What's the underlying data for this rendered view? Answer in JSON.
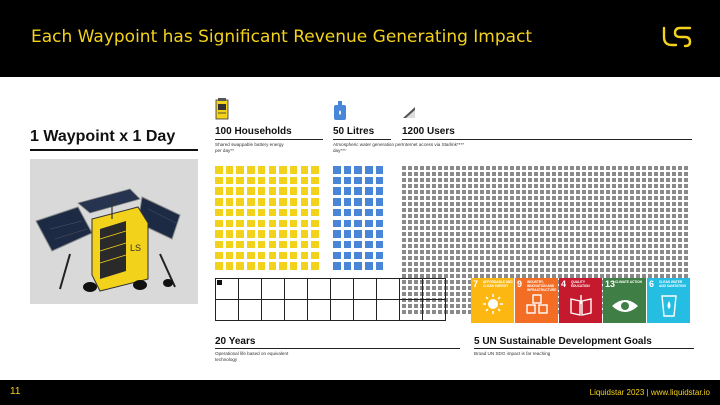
{
  "header": {
    "title": "Each Waypoint has Significant Revenue Generating Impact"
  },
  "slide": {
    "main_heading": "1 Waypoint x 1 Day",
    "columns": [
      {
        "icon": "battery-icon",
        "title": "100 Households",
        "subtitle": "Shared swappable battery energy per day**",
        "count": 100,
        "color": "#f2d21a"
      },
      {
        "icon": "water-bottle-icon",
        "title": "50 Litres",
        "subtitle": "Atmospheric water generation per day***",
        "count": 50,
        "color": "#4a86d8"
      },
      {
        "icon": "signal-icon",
        "title": "1200 Users",
        "subtitle": "Internet access via Starlink****",
        "count": 1200,
        "color": "#8a8a8a"
      }
    ],
    "lifetime": {
      "title": "20 Years",
      "subtitle": "Operational life based on equivalent technology",
      "years": 20,
      "filled": 1
    },
    "sdg": {
      "title": "5 UN Sustainable Development Goals",
      "subtitle": "Broad UN SDG impact is far reaching",
      "goals": [
        {
          "number": "7",
          "label": "AFFORDABLE AND CLEAN ENERGY",
          "color": "#fcb713",
          "icon": "sun-icon"
        },
        {
          "number": "9",
          "label": "INDUSTRY, INNOVATION AND INFRASTRUCTURE",
          "color": "#f36d25",
          "icon": "cubes-icon"
        },
        {
          "number": "4",
          "label": "QUALITY EDUCATION",
          "color": "#c5192d",
          "icon": "book-icon"
        },
        {
          "number": "13",
          "label": "CLIMATE ACTION",
          "color": "#3f7e44",
          "icon": "eye-icon"
        },
        {
          "number": "6",
          "label": "CLEAN WATER AND SANITATION",
          "color": "#26bde2",
          "icon": "water-glass-icon"
        }
      ]
    }
  },
  "footer": {
    "page_number": "11",
    "text": "Liquidstar 2023 | www.liquidstar.io"
  }
}
